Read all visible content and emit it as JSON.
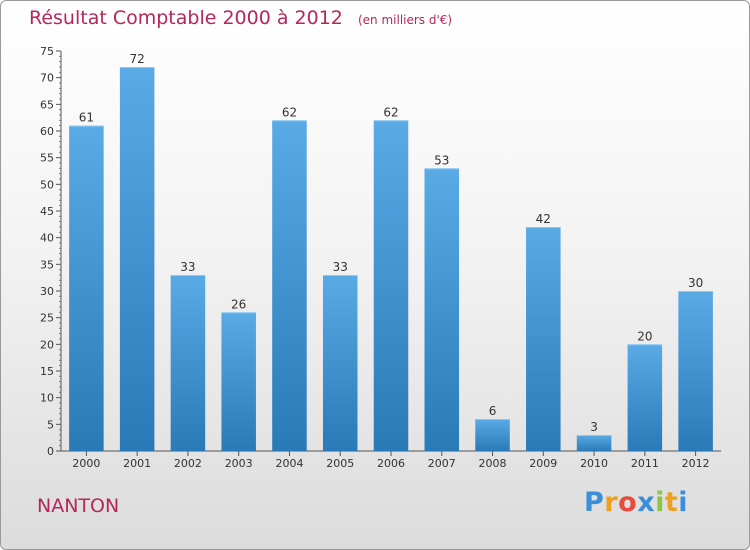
{
  "title": "Résultat Comptable 2000 à 2012",
  "subtitle": "(en milliers d'€)",
  "city": "NANTON",
  "logo": {
    "text": "Proxiti",
    "letters": [
      "P",
      "r",
      "o",
      "x",
      "i",
      "t",
      "i"
    ],
    "colors": [
      "#3a8fd8",
      "#f0a020",
      "#e74c3c",
      "#3a8fd8",
      "#8dc63f",
      "#f0a020",
      "#3a8fd8"
    ]
  },
  "colors": {
    "bar_top": "#5aaae6",
    "bar_bottom": "#2a7ab8",
    "title": "#b5275b"
  },
  "chart_data": {
    "type": "bar",
    "categories": [
      "2000",
      "2001",
      "2002",
      "2003",
      "2004",
      "2005",
      "2006",
      "2007",
      "2008",
      "2009",
      "2010",
      "2011",
      "2012"
    ],
    "values": [
      61,
      72,
      33,
      26,
      62,
      33,
      62,
      53,
      6,
      42,
      3,
      20,
      30
    ],
    "ylim": [
      0,
      75
    ],
    "yticks": [
      0,
      5,
      10,
      15,
      20,
      25,
      30,
      35,
      40,
      45,
      50,
      55,
      60,
      65,
      70,
      75
    ],
    "grid": false
  }
}
